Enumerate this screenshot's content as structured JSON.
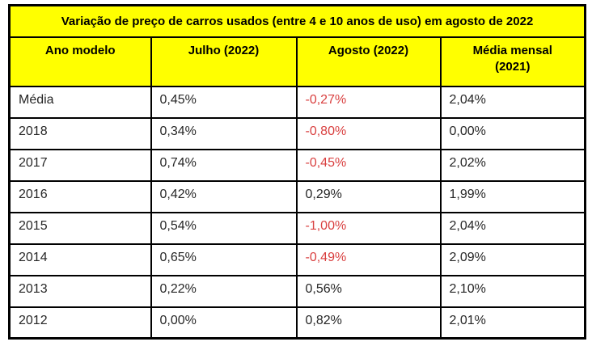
{
  "table": {
    "title": "Variação de preço de carros usados (entre 4 e 10 anos de uso) em agosto de 2022",
    "columns": [
      "Ano modelo",
      "Julho (2022)",
      "Agosto (2022)",
      "Média mensal (2021)"
    ],
    "rows": [
      {
        "cells": [
          "Média",
          "0,45%",
          "-0,27%",
          "2,04%"
        ]
      },
      {
        "cells": [
          "2018",
          "0,34%",
          "-0,80%",
          "0,00%"
        ]
      },
      {
        "cells": [
          "2017",
          "0,74%",
          "-0,45%",
          "2,02%"
        ]
      },
      {
        "cells": [
          "2016",
          "0,42%",
          "0,29%",
          "1,99%"
        ]
      },
      {
        "cells": [
          "2015",
          "0,54%",
          "-1,00%",
          "2,04%"
        ]
      },
      {
        "cells": [
          "2014",
          "0,65%",
          "-0,49%",
          "2,09%"
        ]
      },
      {
        "cells": [
          "2013",
          "0,22%",
          "0,56%",
          "2,10%"
        ]
      },
      {
        "cells": [
          "2012",
          "0,00%",
          "0,82%",
          "2,01%"
        ]
      }
    ]
  },
  "colors": {
    "header_bg": "#FFFF00",
    "negative_text": "#D94040",
    "body_text": "#262626",
    "border": "#000000"
  },
  "chart_data": {
    "type": "table",
    "title": "Variação de preço de carros usados (entre 4 e 10 anos de uso) em agosto de 2022",
    "columns": [
      "Ano modelo",
      "Julho (2022)",
      "Agosto (2022)",
      "Média mensal (2021)"
    ],
    "units": "%",
    "rows": [
      [
        "Média",
        0.45,
        -0.27,
        2.04
      ],
      [
        "2018",
        0.34,
        -0.8,
        0.0
      ],
      [
        "2017",
        0.74,
        -0.45,
        2.02
      ],
      [
        "2016",
        0.42,
        0.29,
        1.99
      ],
      [
        "2015",
        0.54,
        -1.0,
        2.04
      ],
      [
        "2014",
        0.65,
        -0.49,
        2.09
      ],
      [
        "2013",
        0.22,
        0.56,
        2.1
      ],
      [
        "2012",
        0.0,
        0.82,
        2.01
      ]
    ],
    "notes": "Negative values in the Agosto (2022) column are rendered in red; header rows have yellow background"
  }
}
